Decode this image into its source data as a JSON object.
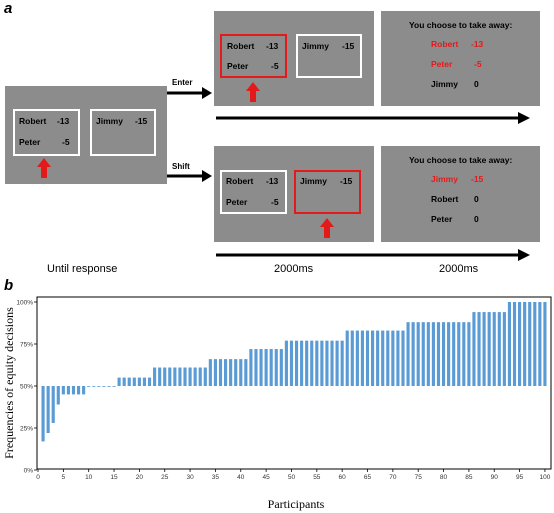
{
  "panel_a": {
    "letter": "a",
    "start": {
      "left_name1": "Robert",
      "left_val1": "-13",
      "left_name2": "Peter",
      "left_val2": "-5",
      "right_name1": "Jimmy",
      "right_val1": "-15"
    },
    "enter_label": "Enter",
    "shift_label": "Shift",
    "enter_screen": {
      "left_name1": "Robert",
      "left_val1": "-13",
      "left_name2": "Peter",
      "left_val2": "-5",
      "right_name1": "Jimmy",
      "right_val1": "-15"
    },
    "enter_result": {
      "title": "You choose to take away:",
      "rows": [
        {
          "name": "Robert",
          "val": "-13"
        },
        {
          "name": "Peter",
          "val": "-5"
        },
        {
          "name": "Jimmy",
          "val": "0"
        }
      ]
    },
    "shift_screen": {
      "left_name1": "Robert",
      "left_val1": "-13",
      "left_name2": "Peter",
      "left_val2": "-5",
      "right_name1": "Jimmy",
      "right_val1": "-15"
    },
    "shift_result": {
      "title": "You choose to take away:",
      "rows": [
        {
          "name": "Jimmy",
          "val": "-15"
        },
        {
          "name": "Robert",
          "val": "0"
        },
        {
          "name": "Peter",
          "val": "0"
        }
      ]
    },
    "timing": {
      "until_response": "Until response",
      "t1": "2000ms",
      "t2": "2000ms"
    },
    "colors": {
      "panel": "#8c8c8c",
      "highlight": "#e41a1a",
      "frame": "#ffffff"
    }
  },
  "panel_b": {
    "letter": "b"
  },
  "chart_data": {
    "type": "bar",
    "xlabel": "Participants",
    "ylabel": "Frequencies of equity decisions",
    "baseline": 50,
    "ylim": [
      0,
      100
    ],
    "yticks": [
      "0%",
      "25%",
      "50%",
      "75%",
      "100%"
    ],
    "xlim": [
      0,
      101
    ],
    "xticks": [
      0,
      5,
      10,
      15,
      20,
      25,
      30,
      35,
      40,
      45,
      50,
      55,
      60,
      65,
      70,
      75,
      80,
      85,
      90,
      95,
      100
    ],
    "bar_color": "#5b9bd5",
    "x": [
      1,
      2,
      3,
      4,
      5,
      6,
      7,
      8,
      9,
      10,
      11,
      12,
      13,
      14,
      15,
      16,
      17,
      18,
      19,
      20,
      21,
      22,
      23,
      24,
      25,
      26,
      27,
      28,
      29,
      30,
      31,
      32,
      33,
      34,
      35,
      36,
      37,
      38,
      39,
      40,
      41,
      42,
      43,
      44,
      45,
      46,
      47,
      48,
      49,
      50,
      51,
      52,
      53,
      54,
      55,
      56,
      57,
      58,
      59,
      60,
      61,
      62,
      63,
      64,
      65,
      66,
      67,
      68,
      69,
      70,
      71,
      72,
      73,
      74,
      75,
      76,
      77,
      78,
      79,
      80,
      81,
      82,
      83,
      84,
      85,
      86,
      87,
      88,
      89,
      90,
      91,
      92,
      93,
      94,
      95,
      96,
      97,
      98,
      99,
      100
    ],
    "values": [
      17,
      22,
      28,
      39,
      45,
      45,
      45,
      45,
      45,
      50,
      50,
      50,
      50,
      50,
      50,
      55,
      55,
      55,
      55,
      55,
      55,
      55,
      61,
      61,
      61,
      61,
      61,
      61,
      61,
      61,
      61,
      61,
      61,
      66,
      66,
      66,
      66,
      66,
      66,
      66,
      66,
      72,
      72,
      72,
      72,
      72,
      72,
      72,
      77,
      77,
      77,
      77,
      77,
      77,
      77,
      77,
      77,
      77,
      77,
      77,
      83,
      83,
      83,
      83,
      83,
      83,
      83,
      83,
      83,
      83,
      83,
      83,
      88,
      88,
      88,
      88,
      88,
      88,
      88,
      88,
      88,
      88,
      88,
      88,
      88,
      94,
      94,
      94,
      94,
      94,
      94,
      94,
      100,
      100,
      100,
      100,
      100,
      100,
      100,
      100
    ]
  }
}
